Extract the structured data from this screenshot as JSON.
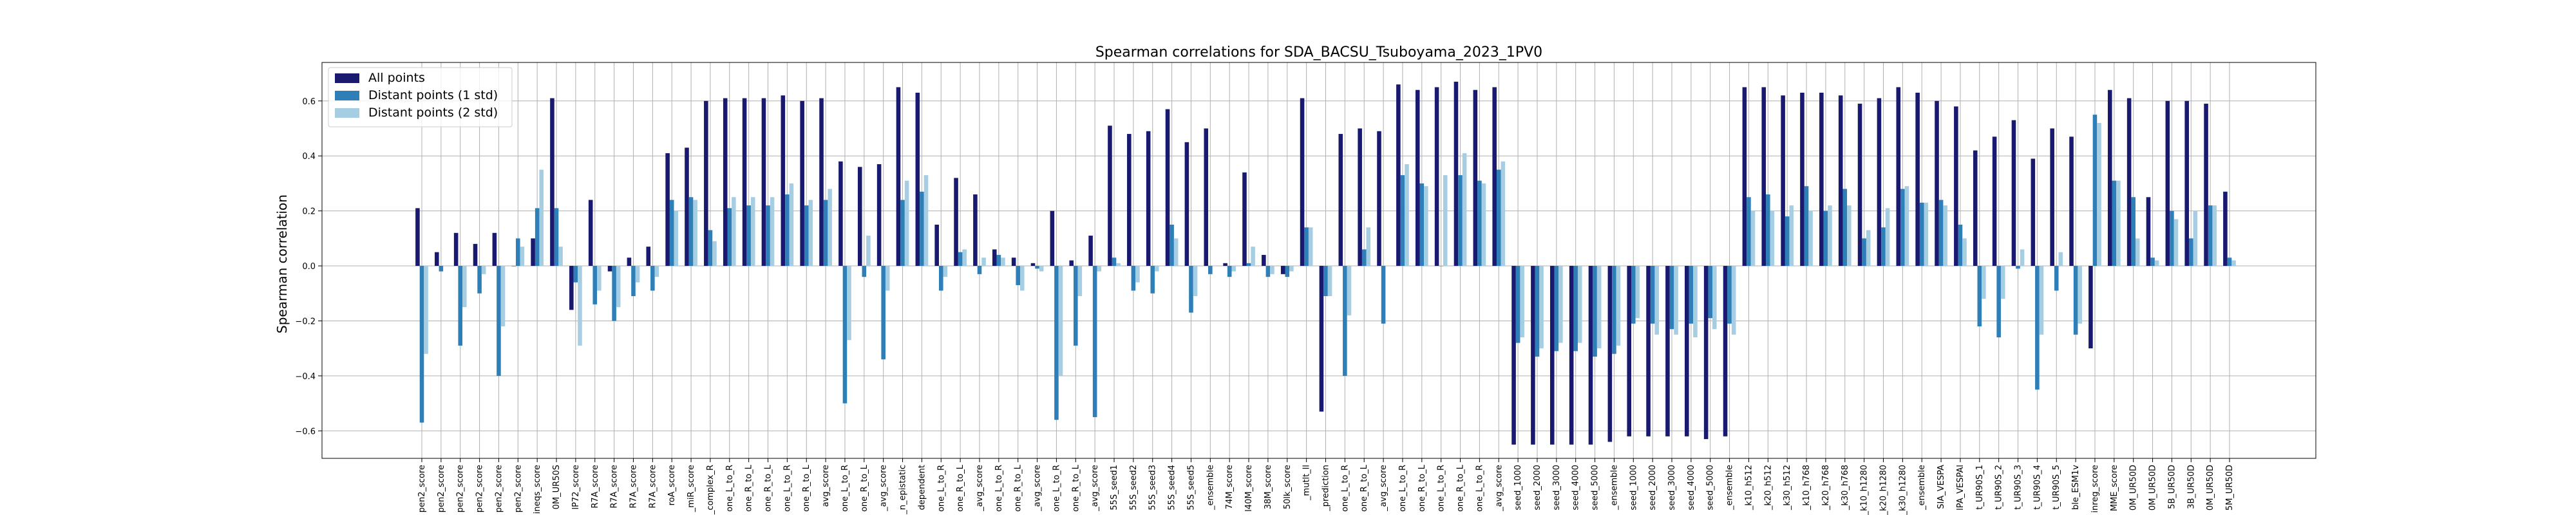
{
  "chart_data": {
    "type": "bar",
    "title": "Spearman correlations for SDA_BACSU_Tsuboyama_2023_1PV0",
    "xlabel": "",
    "ylabel": "Spearman correlation",
    "ylim": [
      -0.7,
      0.74
    ],
    "yticks": [
      -0.6,
      -0.4,
      -0.2,
      0.0,
      0.2,
      0.4,
      0.6
    ],
    "ytick_labels": [
      "−0.6",
      "−0.4",
      "−0.2",
      "0.0",
      "0.2",
      "0.4",
      "0.6"
    ],
    "grid": true,
    "legend_position": "top-left",
    "colors": [
      "#191970",
      "#2e7fb8",
      "#a6cee3"
    ],
    "categories": [
      "pen2_score",
      "pen2_score",
      "pen2_score",
      "pen2_score",
      "pen2_score",
      "pen2_score",
      "ineqs_score",
      "0M_UR50S",
      "lP72_score",
      "R7A_score",
      "R7A_score",
      "R7A_score",
      "R7A_score",
      "roA_score",
      "_miR_score",
      "l_complex_R",
      "one_L_to_R",
      "one_R_to_L",
      "one_R_to_L",
      "one_L_to_R",
      "one_R_to_L",
      "avg_score",
      "one_L_to_R",
      "one_R_to_L",
      "_avg_score",
      "_n_epistatic",
      "dependent",
      "one_L_to_R",
      "one_R_to_L",
      "_avg_score",
      "one_L_to_R",
      "one_R_to_L",
      "_avg_score",
      "one_L_to_R",
      "one_R_to_L",
      "_avg_score",
      "55S_seed1",
      "55S_seed2",
      "55S_seed3",
      "55S_seed4",
      "55S_seed5",
      "_ensemble",
      "74M_score",
      "l40M_score",
      "38M_score",
      "50lk_score",
      "_mutlt_ll",
      "_prediction",
      "one_L_to_R",
      "one_R_to_L",
      "_avg_score",
      "one_L_to_R",
      "one_R_to_L",
      "one_L_to_R",
      "one_R_to_L",
      "one_L_to_R",
      "_avg_score",
      "seed_1000",
      "seed_2000",
      "seed_3000",
      "seed_4000",
      "seed_5000",
      "_ensemble",
      "seed_1000",
      "seed_2000",
      "seed_3000",
      "seed_4000",
      "seed_5000",
      "_ensemble",
      "_k10_h512",
      "_k20_h512",
      "_k30_h512",
      "_k10_h768",
      "_k20_h768",
      "_k30_h768",
      "_k10_h1280",
      "_k20_h1280",
      "_k30_h1280",
      "_ensemble",
      "SIA_VESPA",
      "lPA_VESPAl",
      "t_UR90S_1",
      "t_UR90S_2",
      "t_UR90S_3",
      "t_UR90S_4",
      "t_UR90S_5",
      "ble_ESM1v",
      "inreg_score",
      "MME_score",
      "0M_UR50D",
      "0M_UR50D",
      "5B_UR50D",
      "3B_UR50D",
      "0M_UR50D",
      "5M_UR50D"
    ],
    "series": [
      {
        "name": "All points",
        "values": [
          0.21,
          0.05,
          0.12,
          0.08,
          0.12,
          0.0,
          0.1,
          0.61,
          -0.16,
          0.24,
          -0.02,
          0.03,
          0.07,
          0.41,
          0.43,
          0.6,
          0.61,
          0.61,
          0.61,
          0.62,
          0.6,
          0.61,
          0.38,
          0.36,
          0.37,
          0.65,
          0.63,
          0.15,
          0.32,
          0.26,
          0.06,
          0.03,
          0.01,
          0.2,
          0.02,
          0.11,
          0.51,
          0.48,
          0.49,
          0.57,
          0.45,
          0.5,
          0.01,
          0.34,
          0.04,
          -0.03,
          0.61,
          -0.53,
          0.48,
          0.5,
          0.49,
          0.66,
          0.64,
          0.65,
          0.67,
          0.64,
          0.65,
          -0.65,
          -0.65,
          -0.65,
          -0.65,
          -0.65,
          -0.64,
          -0.62,
          -0.62,
          -0.62,
          -0.62,
          -0.63,
          -0.62,
          0.65,
          0.65,
          0.62,
          0.63,
          0.63,
          0.62,
          0.59,
          0.61,
          0.65,
          0.63,
          0.6,
          0.58,
          0.42,
          0.47,
          0.53,
          0.39,
          0.5,
          0.47,
          -0.3,
          0.64,
          0.61,
          0.25,
          0.6,
          0.6,
          0.59,
          0.27
        ]
      },
      {
        "name": "Distant points (1 std)",
        "values": [
          -0.57,
          -0.02,
          -0.29,
          -0.1,
          -0.4,
          0.1,
          0.21,
          0.21,
          -0.06,
          -0.14,
          -0.2,
          -0.11,
          -0.09,
          0.24,
          0.25,
          0.13,
          0.21,
          0.22,
          0.22,
          0.26,
          0.22,
          0.24,
          -0.5,
          -0.04,
          -0.34,
          0.24,
          0.27,
          -0.09,
          0.05,
          -0.03,
          0.04,
          -0.07,
          -0.01,
          -0.56,
          -0.29,
          -0.55,
          0.03,
          -0.09,
          -0.1,
          0.15,
          -0.17,
          -0.03,
          -0.04,
          0.01,
          -0.04,
          -0.04,
          0.14,
          -0.11,
          -0.4,
          0.06,
          -0.21,
          0.33,
          0.3,
          0.0,
          0.33,
          0.31,
          0.35,
          -0.28,
          -0.33,
          -0.31,
          -0.31,
          -0.33,
          -0.32,
          -0.21,
          -0.21,
          -0.23,
          -0.21,
          -0.19,
          -0.21,
          0.25,
          0.26,
          0.18,
          0.29,
          0.2,
          0.28,
          0.1,
          0.14,
          0.28,
          0.23,
          0.24,
          0.15,
          -0.22,
          -0.26,
          -0.01,
          -0.45,
          -0.09,
          -0.25,
          0.55,
          0.31,
          0.25,
          0.03,
          0.2,
          0.1,
          0.22,
          0.03
        ]
      },
      {
        "name": "Distant points (2 std)",
        "values": [
          -0.32,
          0.0,
          -0.15,
          -0.03,
          -0.22,
          0.07,
          0.35,
          0.07,
          -0.29,
          -0.09,
          -0.15,
          -0.06,
          -0.04,
          0.2,
          0.24,
          0.09,
          0.25,
          0.25,
          0.25,
          0.3,
          0.24,
          0.28,
          -0.27,
          0.11,
          -0.09,
          0.31,
          0.33,
          -0.04,
          0.06,
          0.03,
          0.03,
          -0.09,
          -0.02,
          -0.4,
          -0.11,
          -0.02,
          0.01,
          -0.06,
          -0.02,
          0.1,
          -0.11,
          0.0,
          -0.02,
          0.07,
          -0.03,
          -0.02,
          0.14,
          -0.11,
          -0.18,
          0.14,
          0.0,
          0.37,
          0.29,
          0.33,
          0.41,
          0.3,
          0.38,
          -0.26,
          -0.3,
          -0.28,
          -0.28,
          -0.3,
          -0.29,
          -0.19,
          -0.25,
          -0.25,
          -0.26,
          -0.23,
          -0.25,
          0.2,
          0.2,
          0.22,
          0.2,
          0.22,
          0.22,
          0.13,
          0.21,
          0.29,
          0.23,
          0.22,
          0.1,
          -0.12,
          -0.12,
          0.06,
          -0.25,
          0.05,
          -0.21,
          0.52,
          0.31,
          0.1,
          0.02,
          0.17,
          0.2,
          0.22,
          0.02
        ]
      }
    ]
  }
}
